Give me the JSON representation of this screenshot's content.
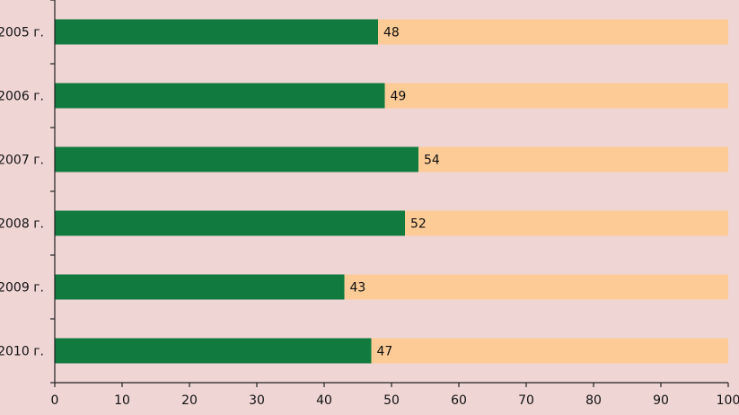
{
  "chart_data": {
    "type": "bar",
    "orientation": "horizontal",
    "stacked": true,
    "categories": [
      "2005 г.",
      "2006 г.",
      "2007 г.",
      "2008 г.",
      "2009 г.",
      "2010 г."
    ],
    "series": [
      {
        "values": [
          48,
          49,
          54,
          52,
          43,
          47
        ],
        "color": "#117a3e"
      },
      {
        "values": [
          52,
          51,
          46,
          48,
          57,
          53
        ],
        "color": "#fccb96"
      }
    ],
    "data_labels": [
      "48",
      "49",
      "54",
      "52",
      "43",
      "47"
    ],
    "xlim": [
      0,
      100
    ],
    "x_ticks": [
      "0",
      "10",
      "20",
      "30",
      "40",
      "50",
      "60",
      "70",
      "80",
      "90",
      "100"
    ],
    "grid": false,
    "legend": "none",
    "background_color": "#f0d5d5"
  }
}
